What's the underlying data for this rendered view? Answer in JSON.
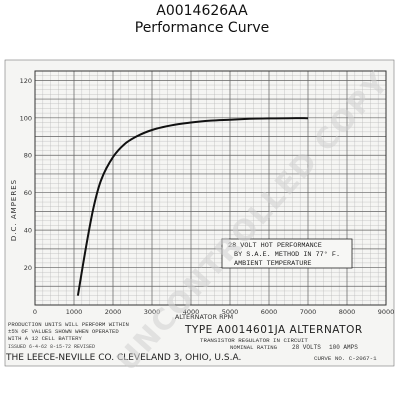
{
  "header": {
    "part_number": "A0014626AA",
    "subtitle": "Performance Curve"
  },
  "chart_data": {
    "type": "line",
    "xlabel": "ALTERNATOR RPM",
    "ylabel": "D.C. AMPERES",
    "xlim": [
      0,
      9000
    ],
    "ylim": [
      0,
      125
    ],
    "x_ticks": [
      0,
      1000,
      2000,
      3000,
      4000,
      5000,
      6000,
      7000,
      8000,
      9000
    ],
    "y_ticks": [
      20,
      40,
      60,
      80,
      100,
      120
    ],
    "grid": true,
    "series": [
      {
        "x": [
          1100,
          1300,
          1500,
          1700,
          2000,
          2300,
          2600,
          3000,
          3500,
          4000,
          4500,
          5000,
          5500,
          6000,
          6500,
          7000
        ],
        "y": [
          5,
          30,
          52,
          67,
          79,
          86,
          90,
          93.5,
          96,
          97.5,
          98.5,
          99,
          99.5,
          99.7,
          99.8,
          99.8
        ]
      }
    ],
    "annotation": {
      "lines": [
        "28 VOLT HOT PERFORMANCE",
        "BY S.A.E. METHOD IN 77° F.",
        "AMBIENT TEMPERATURE"
      ]
    },
    "notes_left": [
      "PRODUCTION UNITS WILL PERFORM WITHIN",
      "±5% OF VALUES SHOWN WHEN OPERATED",
      "WITH A 12 CELL BATTERY"
    ],
    "type_line": "TYPE A0014601JA ALTERNATOR",
    "transistor_line": "TRANSISTOR REGULATOR IN CIRCUIT",
    "rating_label": "NOMINAL RATING",
    "rating_volts": "28 VOLTS",
    "rating_amps": "100 AMPS",
    "issued": "ISSUED  6-4-62  8-15-72 REVISED",
    "company": "THE LEECE-NEVILLE CO. CLEVELAND 3, OHIO, U.S.A.",
    "curve_no": "CURVE NO. C-2067-1",
    "watermark": "UNCONTROLLED COPY"
  }
}
